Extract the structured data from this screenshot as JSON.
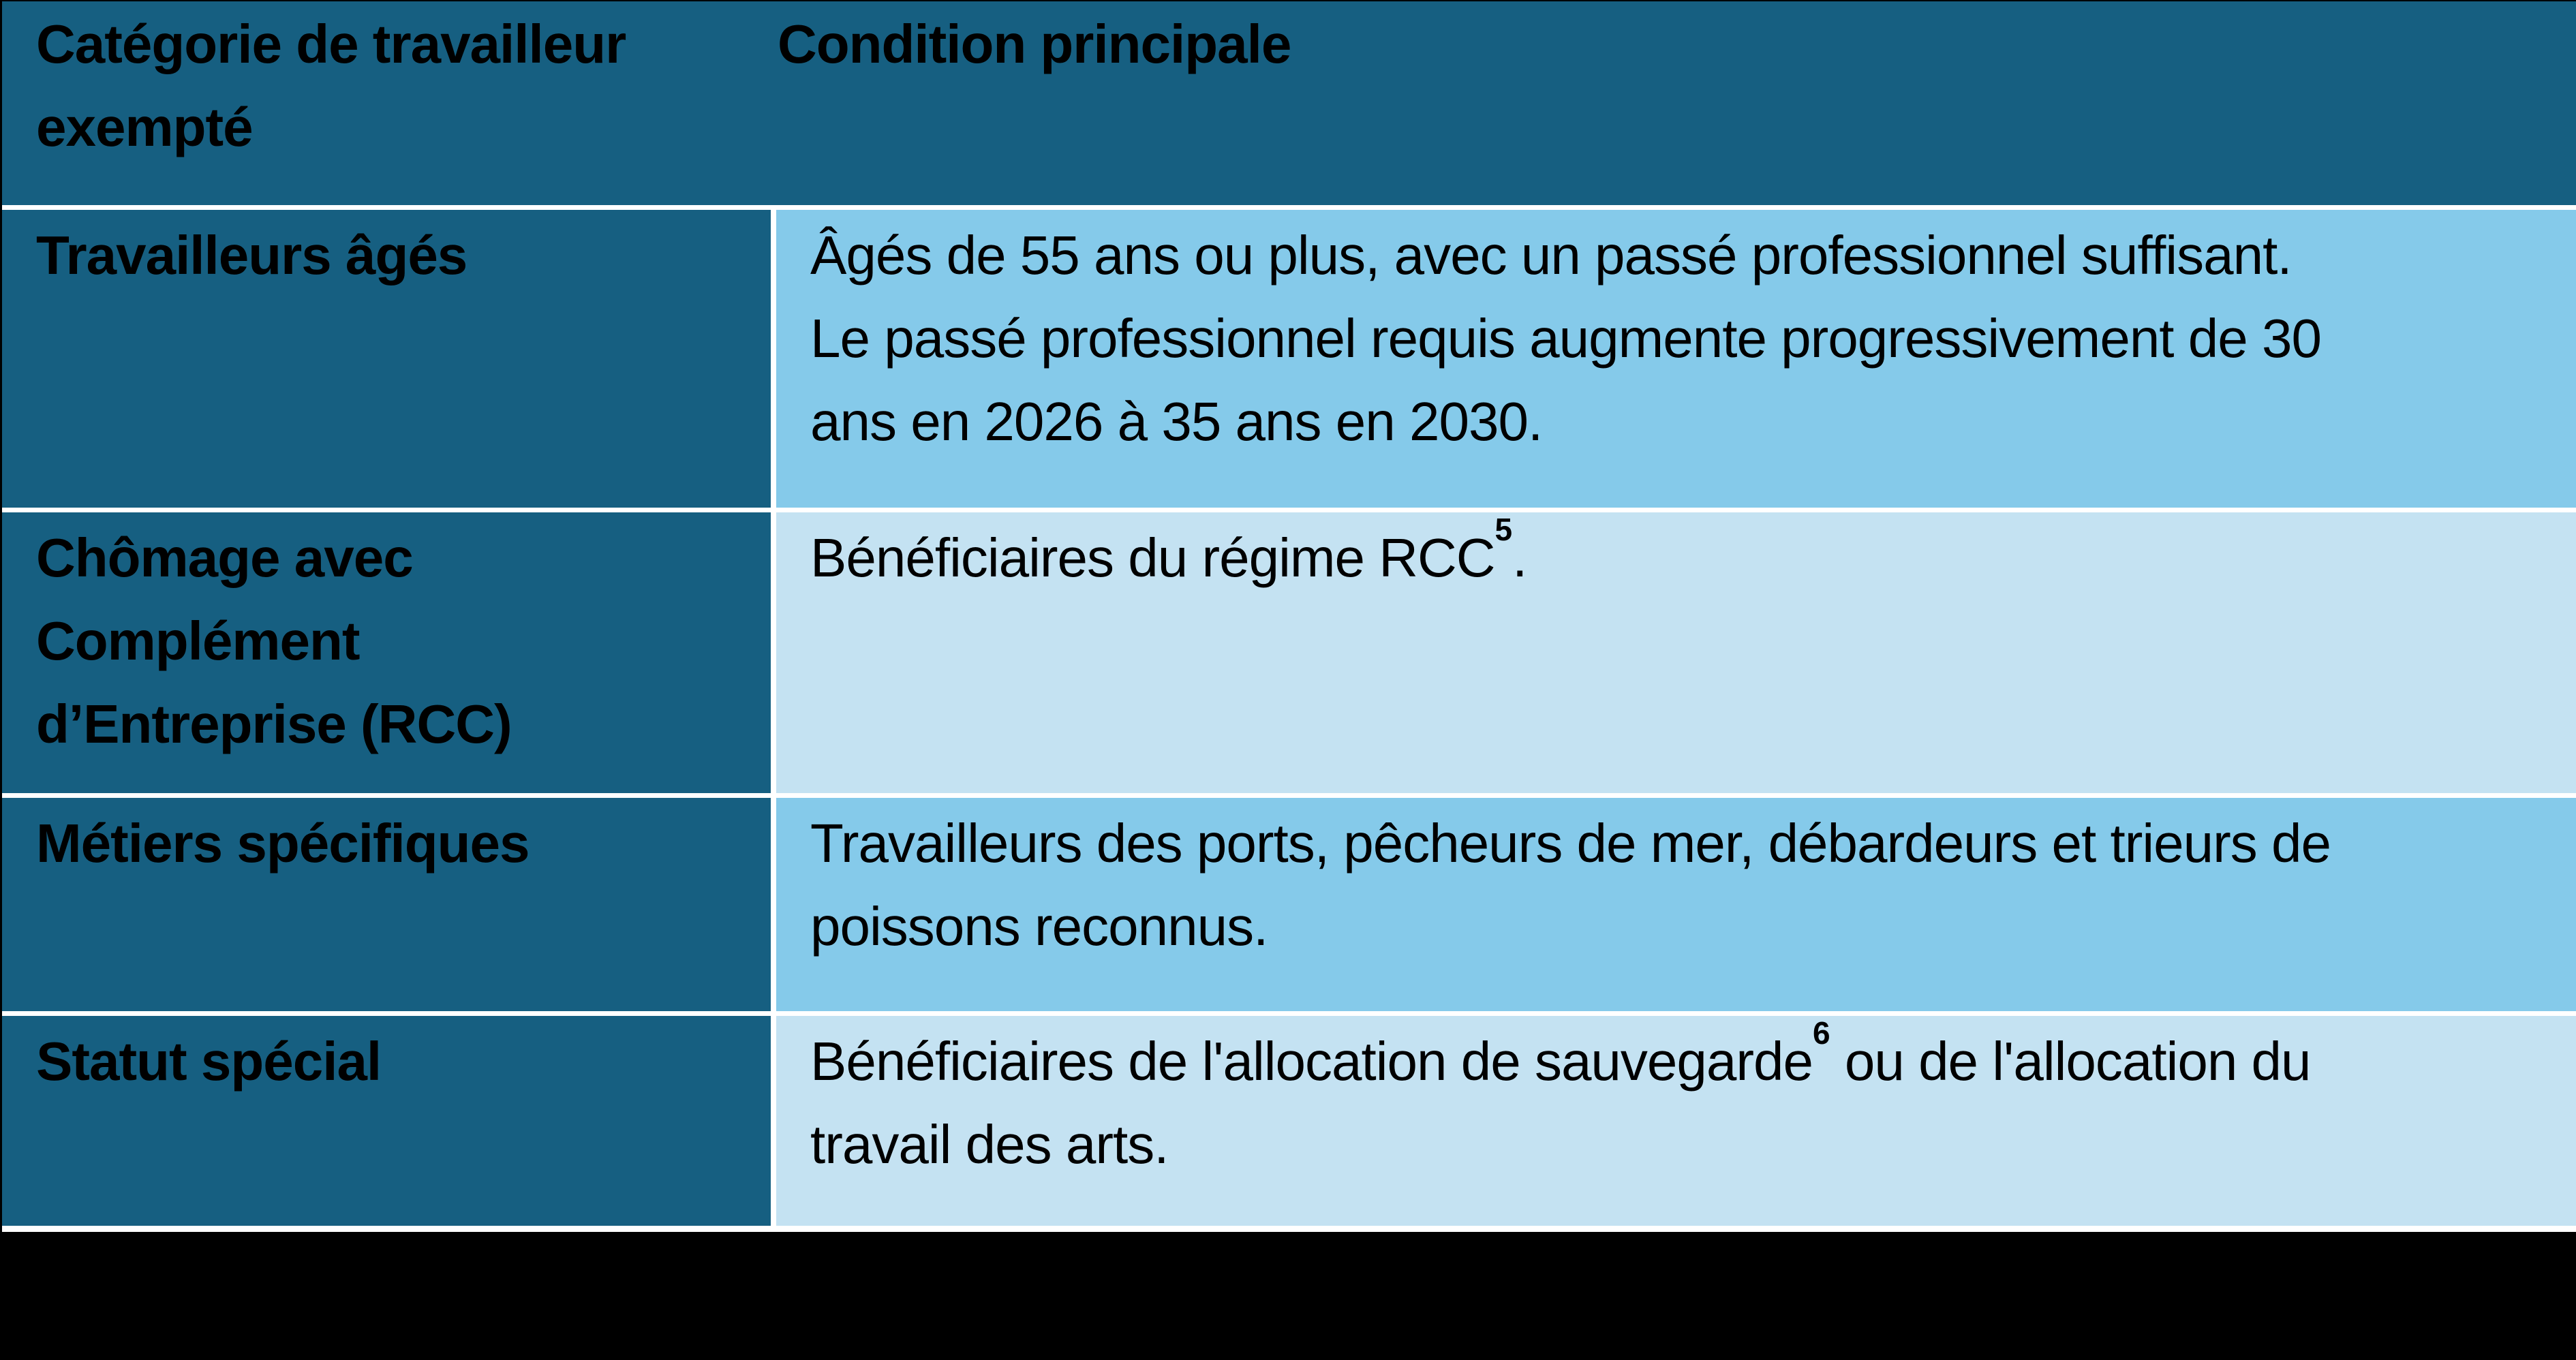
{
  "table": {
    "header": {
      "category": "Catégorie de travailleur\nexempté",
      "condition": "Condition principale"
    },
    "rows": [
      {
        "category": "Travailleurs âgés",
        "condition_before": "Âgés de 55 ans ou plus, avec un passé professionnel suffisant.\nLe passé professionnel requis augmente progressivement de 30\nans en 2026 à 35 ans en 2030.",
        "footnote_ref": "",
        "condition_after": ""
      },
      {
        "category": "Chômage avec\nComplément\nd’Entreprise (RCC)",
        "condition_before": "Bénéficiaires du régime RCC",
        "footnote_ref": "5",
        "condition_after": "."
      },
      {
        "category": "Métiers spécifiques",
        "condition_before": "Travailleurs des ports, pêcheurs de mer, débardeurs et trieurs de\npoissons reconnus.",
        "footnote_ref": "",
        "condition_after": ""
      },
      {
        "category": "Statut spécial",
        "condition_before": "Bénéficiaires de l'allocation de sauvegarde",
        "footnote_ref": "6",
        "condition_after": " ou de l'allocation du\ntravail des arts."
      }
    ],
    "colors": {
      "header_bg": "#165F81",
      "category_column_bg": "#165F81",
      "condition_row_odd_bg": "#85CAEA",
      "condition_row_even_bg": "#C4E2F2",
      "cell_gap": "#FFFFFF",
      "outer_border": "#000000",
      "bottom_bar": "#000000",
      "text": "#000000"
    }
  }
}
